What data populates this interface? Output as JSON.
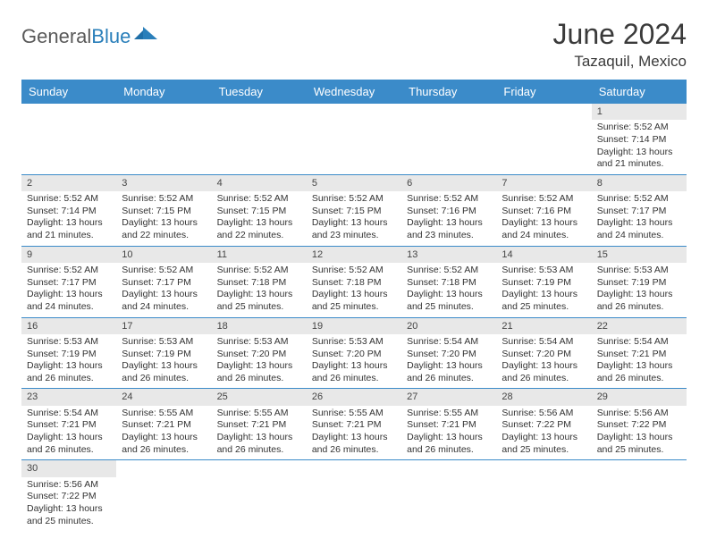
{
  "logo": {
    "text_dark": "General",
    "text_blue": "Blue",
    "brand_color": "#2a7fba"
  },
  "title": "June 2024",
  "location": "Tazaquil, Mexico",
  "colors": {
    "header_bg": "#3b8bc9",
    "header_text": "#ffffff",
    "daynum_bg": "#e8e8e8",
    "row_border": "#3b8bc9",
    "text": "#333333"
  },
  "weekdays": [
    "Sunday",
    "Monday",
    "Tuesday",
    "Wednesday",
    "Thursday",
    "Friday",
    "Saturday"
  ],
  "weeks": [
    [
      null,
      null,
      null,
      null,
      null,
      null,
      {
        "n": "1",
        "sr": "Sunrise: 5:52 AM",
        "ss": "Sunset: 7:14 PM",
        "d1": "Daylight: 13 hours",
        "d2": "and 21 minutes."
      }
    ],
    [
      {
        "n": "2",
        "sr": "Sunrise: 5:52 AM",
        "ss": "Sunset: 7:14 PM",
        "d1": "Daylight: 13 hours",
        "d2": "and 21 minutes."
      },
      {
        "n": "3",
        "sr": "Sunrise: 5:52 AM",
        "ss": "Sunset: 7:15 PM",
        "d1": "Daylight: 13 hours",
        "d2": "and 22 minutes."
      },
      {
        "n": "4",
        "sr": "Sunrise: 5:52 AM",
        "ss": "Sunset: 7:15 PM",
        "d1": "Daylight: 13 hours",
        "d2": "and 22 minutes."
      },
      {
        "n": "5",
        "sr": "Sunrise: 5:52 AM",
        "ss": "Sunset: 7:15 PM",
        "d1": "Daylight: 13 hours",
        "d2": "and 23 minutes."
      },
      {
        "n": "6",
        "sr": "Sunrise: 5:52 AM",
        "ss": "Sunset: 7:16 PM",
        "d1": "Daylight: 13 hours",
        "d2": "and 23 minutes."
      },
      {
        "n": "7",
        "sr": "Sunrise: 5:52 AM",
        "ss": "Sunset: 7:16 PM",
        "d1": "Daylight: 13 hours",
        "d2": "and 24 minutes."
      },
      {
        "n": "8",
        "sr": "Sunrise: 5:52 AM",
        "ss": "Sunset: 7:17 PM",
        "d1": "Daylight: 13 hours",
        "d2": "and 24 minutes."
      }
    ],
    [
      {
        "n": "9",
        "sr": "Sunrise: 5:52 AM",
        "ss": "Sunset: 7:17 PM",
        "d1": "Daylight: 13 hours",
        "d2": "and 24 minutes."
      },
      {
        "n": "10",
        "sr": "Sunrise: 5:52 AM",
        "ss": "Sunset: 7:17 PM",
        "d1": "Daylight: 13 hours",
        "d2": "and 24 minutes."
      },
      {
        "n": "11",
        "sr": "Sunrise: 5:52 AM",
        "ss": "Sunset: 7:18 PM",
        "d1": "Daylight: 13 hours",
        "d2": "and 25 minutes."
      },
      {
        "n": "12",
        "sr": "Sunrise: 5:52 AM",
        "ss": "Sunset: 7:18 PM",
        "d1": "Daylight: 13 hours",
        "d2": "and 25 minutes."
      },
      {
        "n": "13",
        "sr": "Sunrise: 5:52 AM",
        "ss": "Sunset: 7:18 PM",
        "d1": "Daylight: 13 hours",
        "d2": "and 25 minutes."
      },
      {
        "n": "14",
        "sr": "Sunrise: 5:53 AM",
        "ss": "Sunset: 7:19 PM",
        "d1": "Daylight: 13 hours",
        "d2": "and 25 minutes."
      },
      {
        "n": "15",
        "sr": "Sunrise: 5:53 AM",
        "ss": "Sunset: 7:19 PM",
        "d1": "Daylight: 13 hours",
        "d2": "and 26 minutes."
      }
    ],
    [
      {
        "n": "16",
        "sr": "Sunrise: 5:53 AM",
        "ss": "Sunset: 7:19 PM",
        "d1": "Daylight: 13 hours",
        "d2": "and 26 minutes."
      },
      {
        "n": "17",
        "sr": "Sunrise: 5:53 AM",
        "ss": "Sunset: 7:19 PM",
        "d1": "Daylight: 13 hours",
        "d2": "and 26 minutes."
      },
      {
        "n": "18",
        "sr": "Sunrise: 5:53 AM",
        "ss": "Sunset: 7:20 PM",
        "d1": "Daylight: 13 hours",
        "d2": "and 26 minutes."
      },
      {
        "n": "19",
        "sr": "Sunrise: 5:53 AM",
        "ss": "Sunset: 7:20 PM",
        "d1": "Daylight: 13 hours",
        "d2": "and 26 minutes."
      },
      {
        "n": "20",
        "sr": "Sunrise: 5:54 AM",
        "ss": "Sunset: 7:20 PM",
        "d1": "Daylight: 13 hours",
        "d2": "and 26 minutes."
      },
      {
        "n": "21",
        "sr": "Sunrise: 5:54 AM",
        "ss": "Sunset: 7:20 PM",
        "d1": "Daylight: 13 hours",
        "d2": "and 26 minutes."
      },
      {
        "n": "22",
        "sr": "Sunrise: 5:54 AM",
        "ss": "Sunset: 7:21 PM",
        "d1": "Daylight: 13 hours",
        "d2": "and 26 minutes."
      }
    ],
    [
      {
        "n": "23",
        "sr": "Sunrise: 5:54 AM",
        "ss": "Sunset: 7:21 PM",
        "d1": "Daylight: 13 hours",
        "d2": "and 26 minutes."
      },
      {
        "n": "24",
        "sr": "Sunrise: 5:55 AM",
        "ss": "Sunset: 7:21 PM",
        "d1": "Daylight: 13 hours",
        "d2": "and 26 minutes."
      },
      {
        "n": "25",
        "sr": "Sunrise: 5:55 AM",
        "ss": "Sunset: 7:21 PM",
        "d1": "Daylight: 13 hours",
        "d2": "and 26 minutes."
      },
      {
        "n": "26",
        "sr": "Sunrise: 5:55 AM",
        "ss": "Sunset: 7:21 PM",
        "d1": "Daylight: 13 hours",
        "d2": "and 26 minutes."
      },
      {
        "n": "27",
        "sr": "Sunrise: 5:55 AM",
        "ss": "Sunset: 7:21 PM",
        "d1": "Daylight: 13 hours",
        "d2": "and 26 minutes."
      },
      {
        "n": "28",
        "sr": "Sunrise: 5:56 AM",
        "ss": "Sunset: 7:22 PM",
        "d1": "Daylight: 13 hours",
        "d2": "and 25 minutes."
      },
      {
        "n": "29",
        "sr": "Sunrise: 5:56 AM",
        "ss": "Sunset: 7:22 PM",
        "d1": "Daylight: 13 hours",
        "d2": "and 25 minutes."
      }
    ],
    [
      {
        "n": "30",
        "sr": "Sunrise: 5:56 AM",
        "ss": "Sunset: 7:22 PM",
        "d1": "Daylight: 13 hours",
        "d2": "and 25 minutes."
      },
      null,
      null,
      null,
      null,
      null,
      null
    ]
  ]
}
